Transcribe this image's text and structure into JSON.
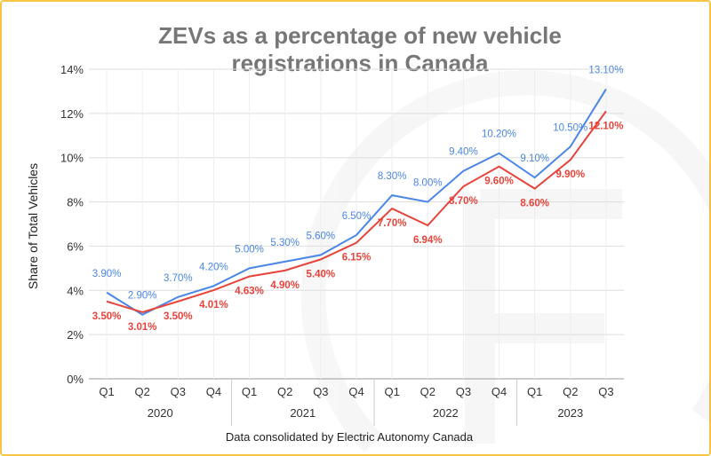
{
  "chart_data": {
    "type": "line",
    "title_lines": [
      "ZEVs as a percentage of new vehicle",
      "registrations in Canada"
    ],
    "ylabel": "Share of Total Vehicles",
    "footer": "Data consolidated by Electric Autonomy Canada",
    "ylim": [
      0,
      14
    ],
    "yticks": [
      "0%",
      "2%",
      "4%",
      "6%",
      "8%",
      "10%",
      "12%",
      "14%"
    ],
    "grid": true,
    "categories": [
      "Q1",
      "Q2",
      "Q3",
      "Q4",
      "Q1",
      "Q2",
      "Q3",
      "Q4",
      "Q1",
      "Q2",
      "Q3",
      "Q4",
      "Q1",
      "Q2",
      "Q3"
    ],
    "years": [
      "2020",
      "2021",
      "2022",
      "2023"
    ],
    "series": [
      {
        "color": "#4a86e8",
        "values": [
          3.9,
          2.9,
          3.7,
          4.2,
          5.0,
          5.3,
          5.6,
          6.5,
          8.3,
          8.0,
          9.4,
          10.2,
          9.1,
          10.5,
          13.1
        ],
        "labels": [
          "3.90%",
          "2.90%",
          "3.70%",
          "4.20%",
          "5.00%",
          "5.30%",
          "5.60%",
          "6.50%",
          "8.30%",
          "8.00%",
          "9.40%",
          "10.20%",
          "9.10%",
          "10.50%",
          "13.10%"
        ]
      },
      {
        "color": "#e8433b",
        "values": [
          3.5,
          3.01,
          3.5,
          4.01,
          4.63,
          4.9,
          5.4,
          6.15,
          7.7,
          6.94,
          8.7,
          9.6,
          8.6,
          9.9,
          12.1
        ],
        "labels": [
          "3.50%",
          "3.01%",
          "3.50%",
          "4.01%",
          "4.63%",
          "4.90%",
          "5.40%",
          "6.15%",
          "7.70%",
          "6.94%",
          "8.70%",
          "9.60%",
          "8.60%",
          "9.90%",
          "12.10%"
        ]
      }
    ]
  },
  "colors": {
    "border": "#f6c544",
    "grid": "#dddddd"
  }
}
